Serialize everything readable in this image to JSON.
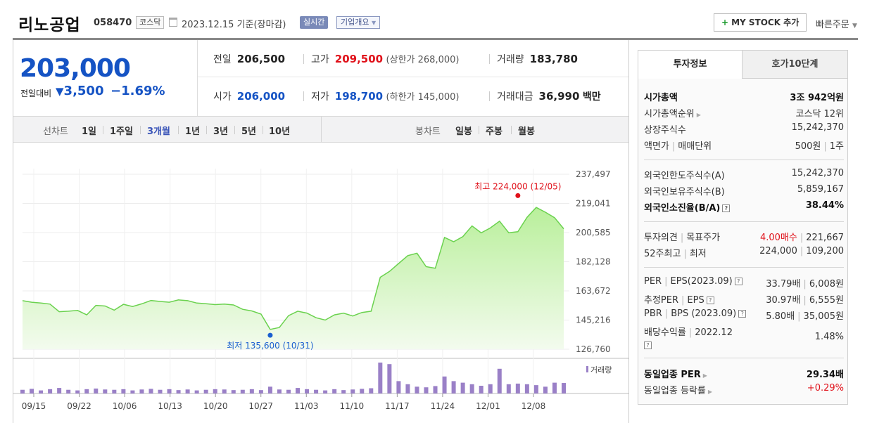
{
  "header": {
    "name": "리노공업",
    "code": "058470",
    "market": "코스닥",
    "date": "2023.12.15 기준(장마감)",
    "live": "실시간",
    "company_info": "기업개요",
    "mystock": "MY STOCK 추가",
    "quick_order": "빠른주문"
  },
  "price": {
    "now": "203,000",
    "change_label": "전일대비",
    "change": "3,500",
    "change_pct": "−1.69%"
  },
  "stats": {
    "prev_label": "전일",
    "prev": "206,500",
    "high_label": "고가",
    "high": "209,500",
    "upper_limit": "(상한가 268,000)",
    "volume_label": "거래량",
    "volume": "183,780",
    "open_label": "시가",
    "open": "206,000",
    "low_label": "저가",
    "low": "198,700",
    "lower_limit": "(하한가 145,000)",
    "amount_label": "거래대금",
    "amount": "36,990",
    "amount_unit": "백만"
  },
  "period": {
    "line_label": "선차트",
    "line_items": [
      "1일",
      "1주일",
      "3개월",
      "1년",
      "3년",
      "5년",
      "10년"
    ],
    "active": "3개월",
    "candle_label": "봉차트",
    "candle_items": [
      "일봉",
      "주봉",
      "월봉"
    ]
  },
  "chart_data": {
    "type": "area",
    "title": "",
    "y_ticks": [
      237497,
      219041,
      200585,
      182128,
      163672,
      145216,
      126760
    ],
    "y_tick_labels": [
      "237,497",
      "219,041",
      "200,585",
      "182,128",
      "163,672",
      "145,216",
      "126,760"
    ],
    "ylim": [
      126760,
      237497
    ],
    "x_tick_labels": [
      "09/15",
      "09/22",
      "10/06",
      "10/13",
      "10/20",
      "10/27",
      "11/03",
      "11/10",
      "11/17",
      "11/24",
      "12/01",
      "12/08"
    ],
    "price": [
      157500,
      156500,
      156000,
      155300,
      150500,
      150800,
      151300,
      148500,
      154500,
      154100,
      151500,
      155200,
      153800,
      155500,
      157600,
      157000,
      156500,
      158000,
      157500,
      156000,
      155600,
      155000,
      155300,
      154800,
      152000,
      151000,
      149000,
      139300,
      140500,
      148000,
      150800,
      149600,
      146700,
      145200,
      148500,
      149600,
      147800,
      150000,
      150800,
      172300,
      176000,
      181000,
      186000,
      187500,
      179000,
      178000,
      197500,
      194800,
      198000,
      204800,
      200400,
      203500,
      207800,
      200500,
      201100,
      210300,
      216500,
      213500,
      210000,
      203000
    ],
    "volume_rel": [
      0.12,
      0.15,
      0.1,
      0.14,
      0.18,
      0.12,
      0.1,
      0.14,
      0.16,
      0.13,
      0.12,
      0.14,
      0.1,
      0.13,
      0.15,
      0.12,
      0.14,
      0.11,
      0.13,
      0.1,
      0.12,
      0.14,
      0.13,
      0.11,
      0.12,
      0.14,
      0.11,
      0.22,
      0.13,
      0.12,
      0.18,
      0.14,
      0.12,
      0.1,
      0.14,
      0.11,
      0.13,
      0.15,
      0.17,
      1.0,
      0.95,
      0.4,
      0.3,
      0.22,
      0.2,
      0.24,
      0.55,
      0.4,
      0.35,
      0.3,
      0.25,
      0.3,
      0.8,
      0.3,
      0.32,
      0.3,
      0.27,
      0.22,
      0.35,
      0.34
    ],
    "volume_label": "거래량",
    "high_annotation": "최고 224,000 (12/05)",
    "low_annotation": "최저 135,600 (10/31)",
    "high_value": 224000,
    "low_value": 135600,
    "high_index": 54,
    "low_index": 27,
    "colors": {
      "line": "#6bd24f",
      "fill_top": "#b9ef9b",
      "fill_bottom": "#f3fbee",
      "volume": "#9a80c7",
      "high": "#e0111a",
      "low": "#1a5fd0"
    }
  },
  "side": {
    "tab_active": "투자정보",
    "tab_other": "호가10단계",
    "market_cap_label": "시가총액",
    "market_cap": "3조 942억원",
    "cap_rank_label": "시가총액순위",
    "cap_rank": "코스닥 12위",
    "shares_label": "상장주식수",
    "shares": "15,242,370",
    "par_label": "액면가",
    "trade_unit_label": "매매단위",
    "par": "500원",
    "trade_unit": "1주",
    "foreign_limit_label": "외국인한도주식수(A)",
    "foreign_limit": "15,242,370",
    "foreign_hold_label": "외국인보유주식수(B)",
    "foreign_hold": "5,859,167",
    "foreign_ratio_label": "외국인소진율(B/A)",
    "foreign_ratio": "38.44%",
    "opinion_label": "투자의견",
    "target_label": "목표주가",
    "opinion": "4.00매수",
    "target": "221,667",
    "w52_label": "52주최고",
    "w52_low_label": "최저",
    "w52_high": "224,000",
    "w52_low": "109,200",
    "per_label": "PER",
    "eps_label": "EPS(2023.09)",
    "per": "33.79배",
    "eps": "6,008원",
    "est_per_label": "추정PER",
    "est_eps_label": "EPS",
    "est_per": "30.97배",
    "est_eps": "6,555원",
    "pbr_label": "PBR",
    "bps_label": "BPS (2023.09)",
    "pbr": "5.80배",
    "bps": "35,005원",
    "div_label": "배당수익률",
    "div_period": "2022.12",
    "div": "1.48%",
    "ind_per_label": "동일업종 PER",
    "ind_per": "29.34배",
    "ind_chg_label": "동일업종 등락률",
    "ind_chg": "+0.29%"
  }
}
